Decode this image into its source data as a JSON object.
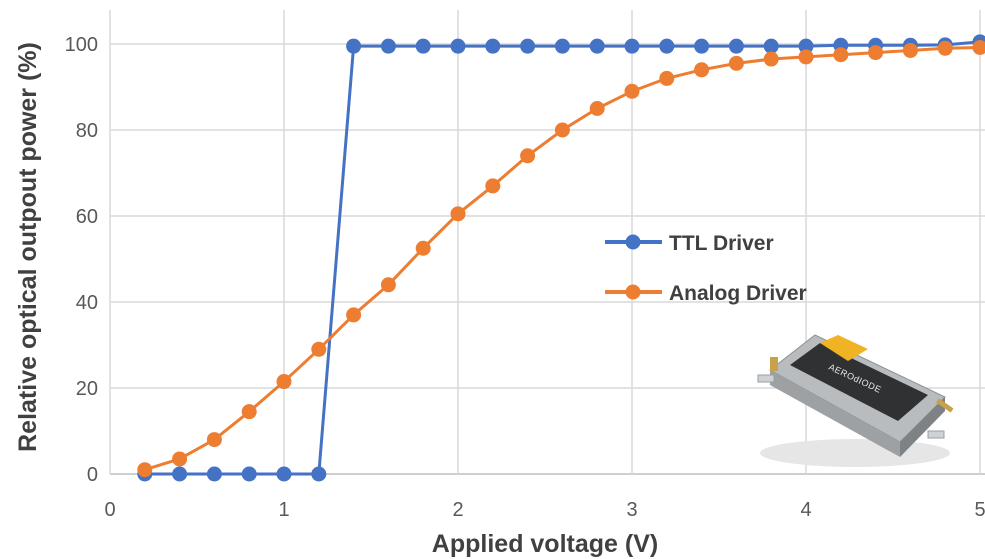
{
  "chart_data": {
    "type": "line",
    "title": "",
    "xlabel": "Applied voltage (V)",
    "ylabel": "Relative optical outpout power  (%)",
    "xlim": [
      0,
      5
    ],
    "ylim": [
      0,
      100
    ],
    "xticks": [
      "0",
      "1",
      "2",
      "3",
      "4",
      "5"
    ],
    "yticks": [
      "0",
      "20",
      "40",
      "60",
      "80",
      "100"
    ],
    "grid": true,
    "legend_position": "center-right",
    "series": [
      {
        "name": "TTL Driver",
        "color": "#4472C4",
        "x": [
          0.2,
          0.4,
          0.6,
          0.8,
          1.0,
          1.2,
          1.4,
          1.6,
          1.8,
          2.0,
          2.2,
          2.4,
          2.6,
          2.8,
          3.0,
          3.2,
          3.4,
          3.6,
          3.8,
          4.0,
          4.2,
          4.4,
          4.6,
          4.8,
          5.0
        ],
        "y": [
          0,
          0,
          0,
          0,
          0,
          0,
          99.5,
          99.5,
          99.5,
          99.5,
          99.5,
          99.5,
          99.5,
          99.5,
          99.5,
          99.5,
          99.5,
          99.5,
          99.5,
          99.5,
          99.7,
          99.7,
          99.7,
          99.8,
          100.5
        ]
      },
      {
        "name": "Analog Driver",
        "color": "#ED7D31",
        "x": [
          0.2,
          0.4,
          0.6,
          0.8,
          1.0,
          1.2,
          1.4,
          1.6,
          1.8,
          2.0,
          2.2,
          2.4,
          2.6,
          2.8,
          3.0,
          3.2,
          3.4,
          3.6,
          3.8,
          4.0,
          4.2,
          4.4,
          4.6,
          4.8,
          5.0
        ],
        "y": [
          1,
          3.5,
          8,
          14.5,
          21.5,
          29,
          37,
          44,
          52.5,
          60.5,
          67,
          74,
          80,
          85,
          89,
          92,
          94,
          95.5,
          96.5,
          97,
          97.5,
          98,
          98.5,
          99,
          99.2
        ]
      }
    ]
  },
  "device": {
    "icon": "laser-driver-module-photo",
    "brand": "AEROdIODE"
  }
}
